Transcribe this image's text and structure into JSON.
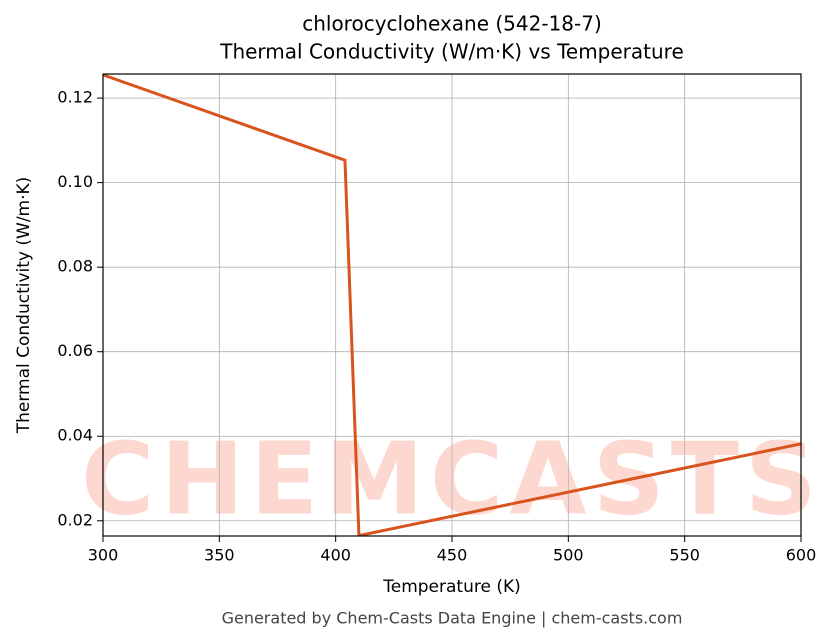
{
  "chart_data": {
    "type": "line",
    "title": "chlorocyclohexane (542-18-7)",
    "subtitle": "Thermal Conductivity (W/m·K) vs Temperature",
    "x_label": "Temperature (K)",
    "y_label": "Thermal Conductivity (W/m·K)",
    "watermark": "CHEMCASTS",
    "footer": "Generated by Chem-Casts Data Engine | chem-casts.com",
    "x": [
      300,
      404,
      410,
      600
    ],
    "series": [
      {
        "name": "Thermal Conductivity",
        "color": "#d9531e",
        "values": [
          0.1255,
          0.1053,
          0.0165,
          0.0382
        ]
      }
    ],
    "xlim": [
      300,
      600
    ],
    "xticks": [
      300,
      350,
      400,
      450,
      500,
      550,
      600
    ],
    "ylim": [
      0.0164,
      0.1257
    ],
    "yticks": [
      0.02,
      0.04,
      0.06,
      0.08,
      {
        "value": 0.1,
        "label": "0.10"
      },
      0.12
    ],
    "grid": true
  }
}
